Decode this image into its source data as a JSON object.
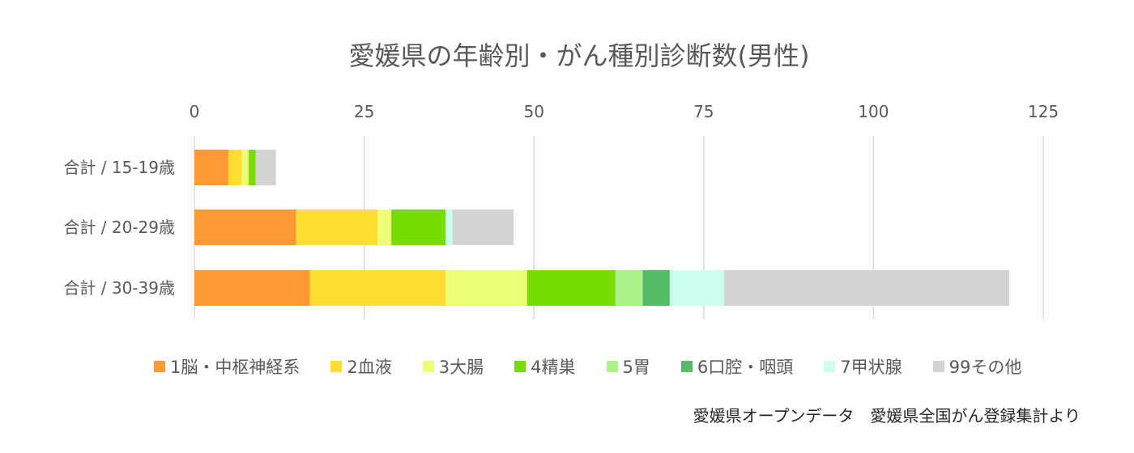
{
  "chart_data": {
    "type": "bar",
    "orientation": "horizontal",
    "stacked": true,
    "title": "愛媛県の年齢別・がん種別診断数(男性)",
    "categories": [
      "合計 / 15-19歳",
      "合計 / 20-29歳",
      "合計 / 30-39歳"
    ],
    "xlim": [
      0,
      125
    ],
    "xticks": [
      0,
      25,
      50,
      75,
      100,
      125
    ],
    "grid": "vertical",
    "legend_position": "bottom",
    "series": [
      {
        "name": "1脳・中枢神経系",
        "color": "#FF9933",
        "values": [
          5,
          15,
          17
        ]
      },
      {
        "name": "2血液",
        "color": "#FFDD33",
        "values": [
          2,
          12,
          20
        ]
      },
      {
        "name": "3大腸",
        "color": "#EEFF77",
        "values": [
          1,
          2,
          12
        ]
      },
      {
        "name": "4精巣",
        "color": "#77DD00",
        "values": [
          1,
          8,
          13
        ]
      },
      {
        "name": "5胃",
        "color": "#AAF388",
        "values": [
          0,
          0,
          4
        ]
      },
      {
        "name": "6口腔・咽頭",
        "color": "#55BB66",
        "values": [
          0,
          0,
          4
        ]
      },
      {
        "name": "7甲状腺",
        "color": "#CCFFEE",
        "values": [
          0,
          1,
          8
        ]
      },
      {
        "name": "99その他",
        "color": "#D3D3D3",
        "values": [
          3,
          9,
          42
        ]
      }
    ]
  },
  "source": "愛媛県オープンデータ　愛媛県全国がん登録集計より"
}
